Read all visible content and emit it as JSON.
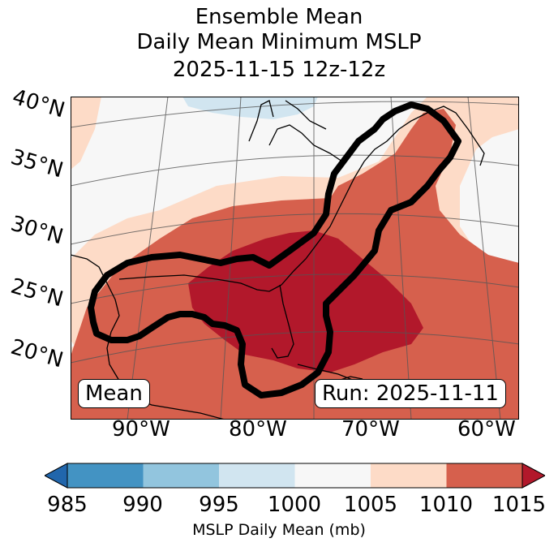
{
  "title": {
    "line1": "Ensemble Mean",
    "line2": "Daily Mean Minimum MSLP",
    "line3": "2025-11-15 12z-12z"
  },
  "map": {
    "lat_labels": [
      "40°N",
      "35°N",
      "30°N",
      "25°N",
      "20°N"
    ],
    "lon_labels": [
      "90°W",
      "80°W",
      "70°W",
      "60°W"
    ],
    "left_box": "Mean",
    "right_box": "Run: 2025-11-11"
  },
  "colorbar": {
    "ticks": [
      "985",
      "990",
      "995",
      "1000",
      "1005",
      "1010",
      "1015"
    ],
    "label": "MSLP Daily Mean (mb)",
    "colors": {
      "lt_985": "#2166ac",
      "985_990": "#4393c3",
      "990_995": "#92c5de",
      "995_1000": "#d1e5f0",
      "1000_1005": "#f7f7f7",
      "1005_1010": "#fddbc7",
      "1010_1015": "#d6604d",
      "gt_1015": "#b2182b"
    }
  }
}
